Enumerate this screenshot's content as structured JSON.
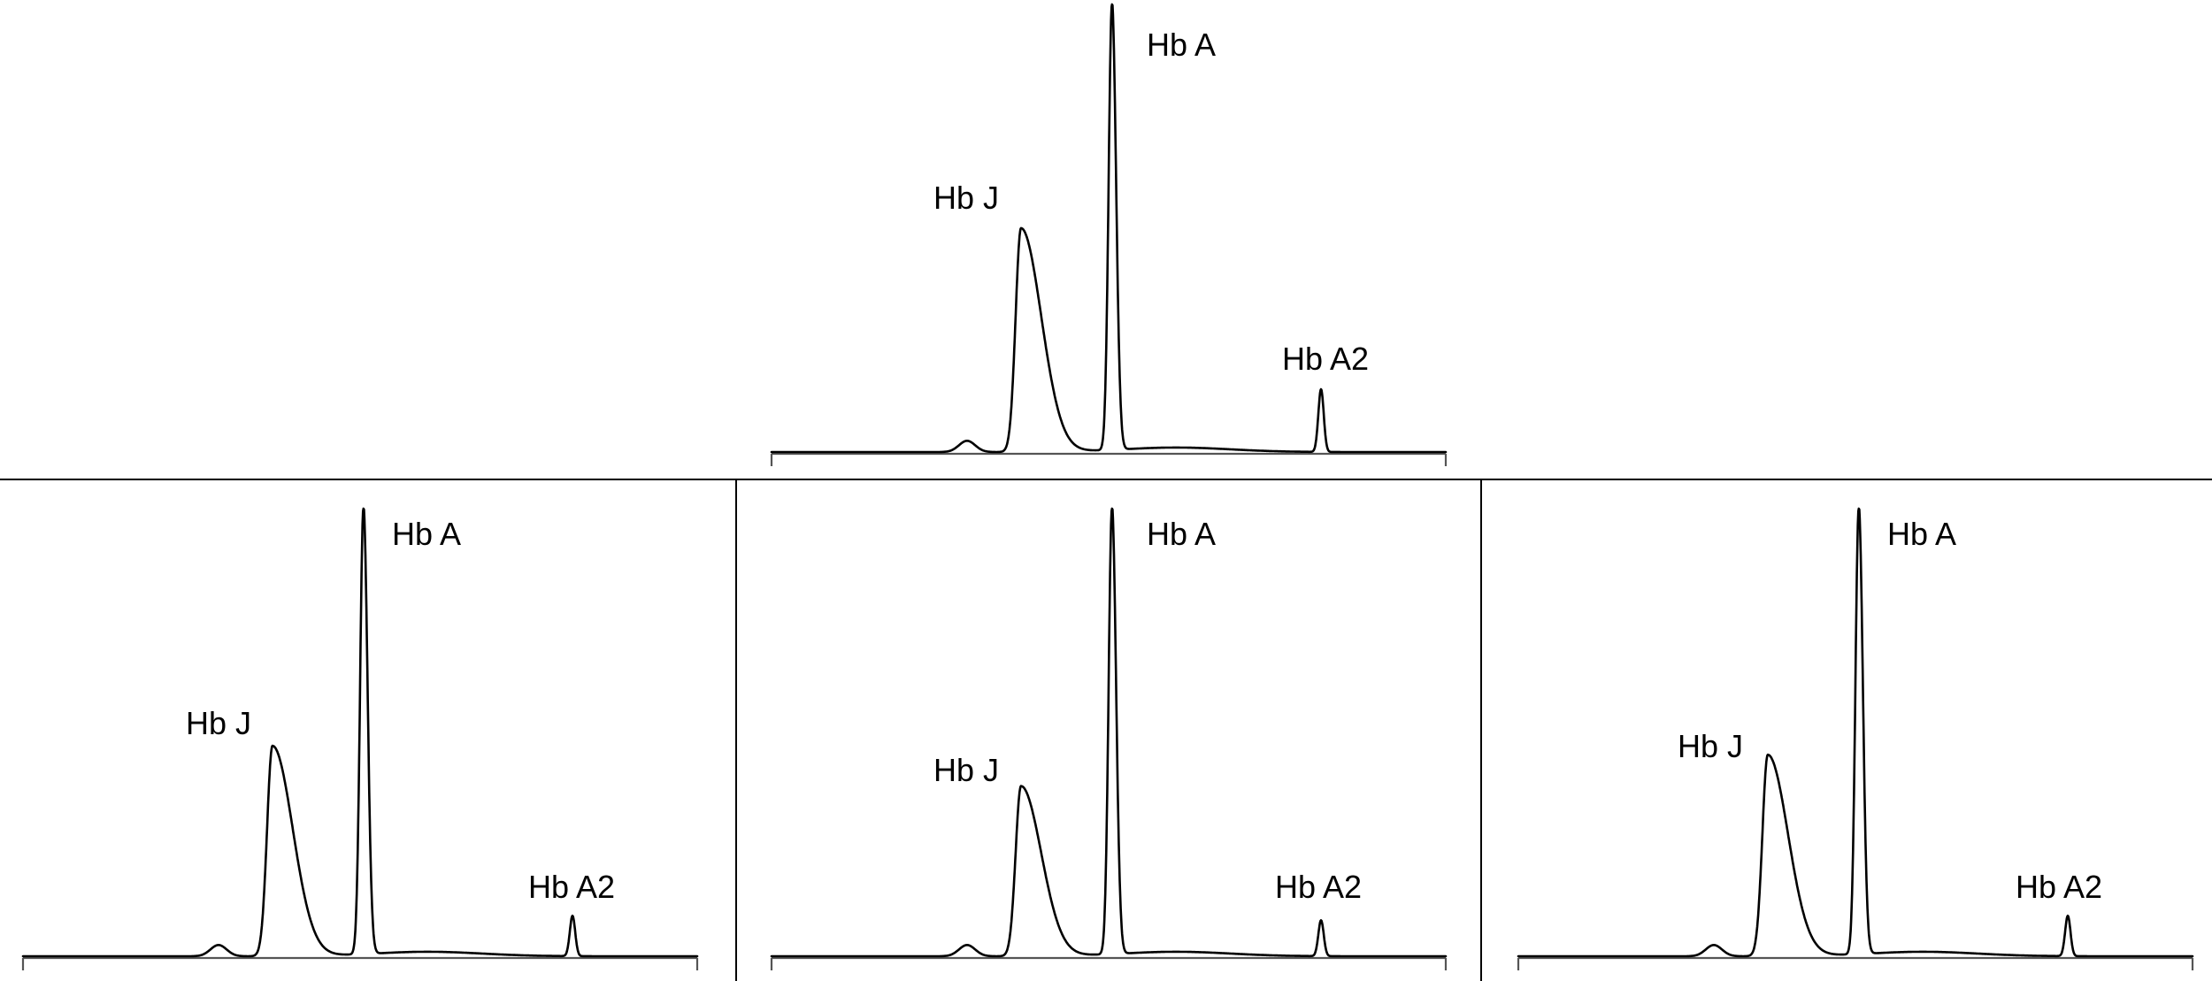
{
  "chart_data": [
    {
      "type": "line",
      "panel": "top-center",
      "title": "",
      "xlabel": "",
      "ylabel": "",
      "peaks": [
        {
          "name": "Hb J",
          "label": "Hb J",
          "x": 0.37,
          "height": 0.5
        },
        {
          "name": "Hb A",
          "label": "Hb A",
          "x": 0.505,
          "height": 1.0
        },
        {
          "name": "Hb A2",
          "label": "Hb A2",
          "x": 0.815,
          "height": 0.14
        }
      ]
    },
    {
      "type": "line",
      "panel": "bottom-left",
      "title": "",
      "xlabel": "",
      "ylabel": "",
      "peaks": [
        {
          "name": "Hb J",
          "label": "Hb J",
          "x": 0.37,
          "height": 0.47
        },
        {
          "name": "Hb A",
          "label": "Hb A",
          "x": 0.505,
          "height": 1.0
        },
        {
          "name": "Hb A2",
          "label": "Hb A2",
          "x": 0.815,
          "height": 0.09
        }
      ]
    },
    {
      "type": "line",
      "panel": "bottom-center",
      "title": "",
      "xlabel": "",
      "ylabel": "",
      "peaks": [
        {
          "name": "Hb J",
          "label": "Hb J",
          "x": 0.37,
          "height": 0.38
        },
        {
          "name": "Hb A",
          "label": "Hb A",
          "x": 0.505,
          "height": 1.0
        },
        {
          "name": "Hb A2",
          "label": "Hb A2",
          "x": 0.815,
          "height": 0.08
        }
      ]
    },
    {
      "type": "line",
      "panel": "bottom-right",
      "title": "",
      "xlabel": "",
      "ylabel": "",
      "peaks": [
        {
          "name": "Hb J",
          "label": "Hb J",
          "x": 0.37,
          "height": 0.45
        },
        {
          "name": "Hb A",
          "label": "Hb A",
          "x": 0.505,
          "height": 1.0
        },
        {
          "name": "Hb A2",
          "label": "Hb A2",
          "x": 0.815,
          "height": 0.09
        }
      ]
    }
  ]
}
